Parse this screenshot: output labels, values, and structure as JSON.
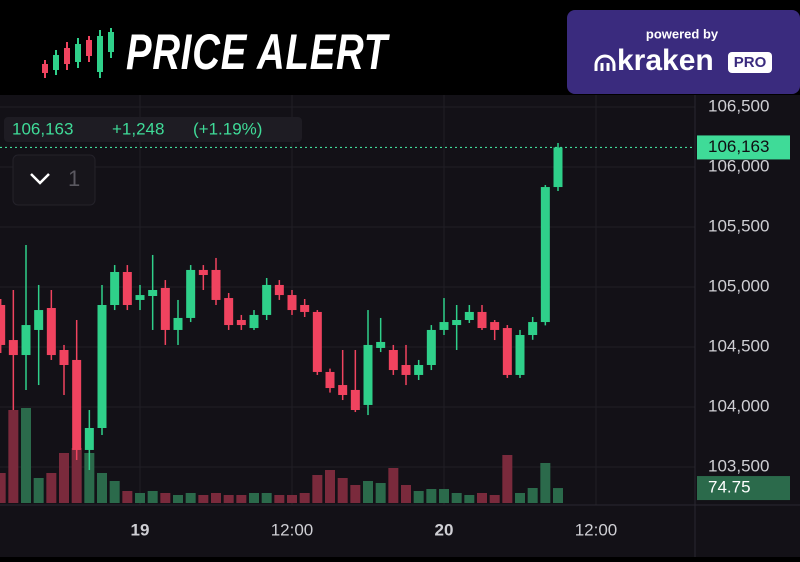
{
  "header": {
    "title": "PRICE ALERT",
    "powered_by": "powered by",
    "brand": "kraken",
    "brand_badge": "PRO"
  },
  "chart_data": {
    "type": "candlestick",
    "categories": [
      null,
      null,
      null,
      null,
      null,
      null,
      null,
      null,
      null,
      null,
      null,
      "19",
      null,
      null,
      null,
      null,
      null,
      null,
      null,
      null,
      null,
      null,
      null,
      "12:00",
      null,
      null,
      null,
      null,
      null,
      null,
      null,
      null,
      null,
      null,
      null,
      "20",
      null,
      null,
      null,
      null,
      null,
      null,
      null,
      null,
      null,
      null,
      null,
      "12:00"
    ],
    "open": [
      104850,
      104558,
      104433,
      104642,
      104825,
      104475,
      104392,
      103642,
      103825,
      104850,
      105125,
      104892,
      104925,
      104992,
      104642,
      104742,
      105142,
      105142,
      104908,
      104725,
      104658,
      104767,
      105017,
      104933,
      104850,
      104792,
      104292,
      104183,
      104142,
      104017,
      104492,
      104475,
      104350,
      104267,
      104350,
      104642,
      104683,
      104725,
      104792,
      104708,
      104658,
      104267,
      104600,
      104708,
      105833,
      null,
      null,
      null
    ],
    "high": [
      104900,
      104975,
      105350,
      105017,
      104975,
      104517,
      104725,
      103975,
      105017,
      105183,
      105183,
      105017,
      105267,
      105058,
      104892,
      105183,
      105183,
      105242,
      104950,
      104767,
      104808,
      105075,
      105058,
      104975,
      104900,
      104808,
      104320,
      104475,
      104475,
      104808,
      104742,
      104517,
      104517,
      104392,
      104683,
      104908,
      104850,
      104850,
      104850,
      104725,
      104683,
      104642,
      104750,
      105850,
      106200,
      null,
      null,
      null
    ],
    "low": [
      104450,
      103975,
      104142,
      104183,
      104392,
      104100,
      103558,
      103475,
      103767,
      104808,
      104808,
      104808,
      104642,
      104517,
      104517,
      104708,
      104975,
      104850,
      104642,
      104642,
      104642,
      104725,
      104892,
      104767,
      104750,
      104267,
      104120,
      104058,
      103958,
      103933,
      104458,
      104267,
      104183,
      104225,
      104308,
      104600,
      104475,
      104700,
      104642,
      104558,
      104242,
      104242,
      104560,
      104680,
      105800,
      null,
      null,
      null
    ],
    "close": [
      104517,
      104433,
      104683,
      104808,
      104433,
      104350,
      103642,
      103825,
      104850,
      105125,
      104850,
      104933,
      104975,
      104642,
      104742,
      105142,
      105100,
      104892,
      104683,
      104683,
      104767,
      105017,
      104933,
      104808,
      104792,
      104292,
      104158,
      104100,
      103975,
      104517,
      104542,
      104308,
      104267,
      104350,
      104642,
      104708,
      104725,
      104792,
      104658,
      104642,
      104267,
      104600,
      104708,
      105833,
      106163,
      null,
      null,
      null
    ],
    "volume": [
      150,
      465,
      475,
      125,
      150,
      250,
      275,
      250,
      150,
      110,
      60,
      50,
      60,
      50,
      40,
      50,
      40,
      50,
      40,
      40,
      50,
      50,
      40,
      40,
      50,
      140,
      165,
      125,
      90,
      110,
      100,
      175,
      90,
      60,
      70,
      70,
      50,
      40,
      50,
      40,
      240,
      50,
      75,
      200,
      74.75,
      null,
      null,
      null
    ],
    "ylim": [
      103200,
      106600
    ],
    "yticks": [
      {
        "value": 103500,
        "label": "103,500"
      },
      {
        "value": 104000,
        "label": "104,000"
      },
      {
        "value": 104500,
        "label": "104,500"
      },
      {
        "value": 105000,
        "label": "105,000"
      },
      {
        "value": 105500,
        "label": "105,500"
      },
      {
        "value": 106000,
        "label": "106,000"
      },
      {
        "value": 106500,
        "label": "106,500"
      }
    ],
    "volume_lim": [
      0,
      500
    ],
    "grid": true,
    "up_color": "#2fd08a",
    "down_color": "#f0435f",
    "up_volume_color": "#2b6a4b",
    "down_volume_color": "#7a2a3c",
    "readout": {
      "price": "106,163",
      "change": "+1,248",
      "change_pct": "(+1.19%)"
    },
    "interval": "1"
  }
}
